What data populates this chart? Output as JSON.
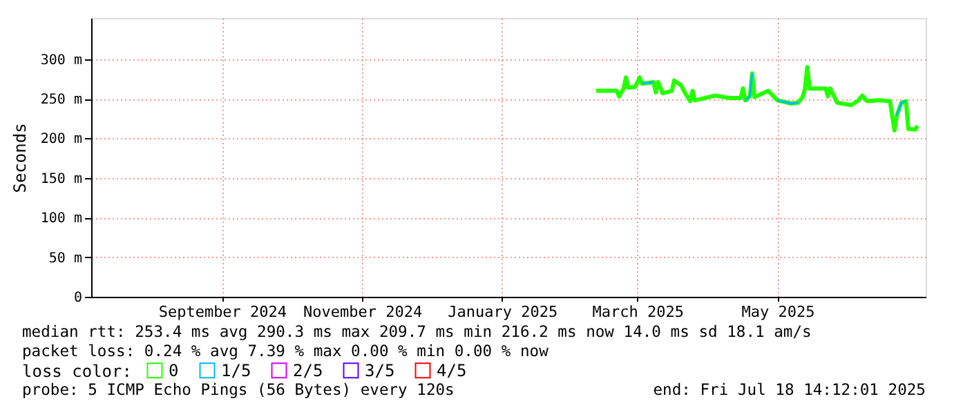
{
  "chart_data": {
    "type": "line",
    "ylabel": "Seconds",
    "x": [
      "2025-02-25",
      "2025-03-06",
      "2025-03-07",
      "2025-03-09",
      "2025-03-10",
      "2025-03-11",
      "2025-03-14",
      "2025-03-16",
      "2025-03-17",
      "2025-03-22",
      "2025-03-23",
      "2025-03-24",
      "2025-03-26",
      "2025-03-30",
      "2025-03-31",
      "2025-04-03",
      "2025-04-05",
      "2025-04-07",
      "2025-04-08",
      "2025-04-09",
      "2025-04-12",
      "2025-04-18",
      "2025-04-24",
      "2025-04-29",
      "2025-04-30",
      "2025-05-01",
      "2025-05-03",
      "2025-05-04",
      "2025-05-05",
      "2025-05-11",
      "2025-05-15",
      "2025-05-21",
      "2025-05-24",
      "2025-05-26",
      "2025-05-27",
      "2025-05-28",
      "2025-05-29",
      "2025-06-05",
      "2025-06-06",
      "2025-06-07",
      "2025-06-10",
      "2025-06-16",
      "2025-06-19",
      "2025-06-21",
      "2025-06-23",
      "2025-06-28",
      "2025-07-03",
      "2025-07-05",
      "2025-07-06",
      "2025-07-08",
      "2025-07-10",
      "2025-07-11",
      "2025-07-14",
      "2025-07-15"
    ],
    "series": [
      {
        "name": "0",
        "color": "#26ff00",
        "values": [
          260,
          260,
          253,
          263,
          277,
          264,
          265,
          277,
          269,
          271,
          258,
          271,
          257,
          260,
          273,
          267,
          256,
          247,
          260,
          248,
          250,
          254,
          251,
          251,
          263,
          248,
          253,
          282,
          252,
          260,
          248,
          244,
          245,
          252,
          263,
          290,
          263,
          263,
          253,
          263,
          245,
          242,
          247,
          254,
          247,
          248,
          247,
          210,
          229,
          245,
          247,
          212,
          211,
          216
        ]
      },
      {
        "name": "1/5",
        "color": "#00b8ff",
        "values": [
          null,
          null,
          null,
          null,
          null,
          null,
          null,
          null,
          269,
          271,
          null,
          null,
          null,
          null,
          null,
          null,
          null,
          null,
          null,
          null,
          null,
          null,
          null,
          null,
          null,
          248,
          253,
          282,
          null,
          null,
          248,
          244,
          245,
          null,
          null,
          null,
          null,
          null,
          null,
          null,
          null,
          null,
          null,
          null,
          null,
          null,
          null,
          null,
          229,
          245,
          247,
          null,
          null,
          null
        ]
      },
      {
        "name": "2/5",
        "color": "#d200ff",
        "values": [
          null,
          null,
          null,
          null,
          null,
          null,
          null,
          null,
          null,
          null,
          null,
          null,
          null,
          null,
          null,
          null,
          null,
          null,
          null,
          null,
          null,
          null,
          null,
          null,
          null,
          null,
          null,
          null,
          null,
          null,
          null,
          null,
          null,
          null,
          null,
          null,
          null,
          null,
          null,
          null,
          null,
          null,
          null,
          null,
          null,
          null,
          null,
          null,
          null,
          null,
          null,
          null,
          null,
          null
        ]
      },
      {
        "name": "3/5",
        "color": "#5e00ff",
        "values": [
          null,
          null,
          null,
          null,
          null,
          null,
          null,
          null,
          null,
          null,
          null,
          null,
          null,
          null,
          null,
          null,
          null,
          null,
          null,
          null,
          null,
          null,
          null,
          null,
          null,
          null,
          null,
          null,
          null,
          null,
          null,
          null,
          null,
          null,
          null,
          null,
          null,
          null,
          null,
          null,
          null,
          null,
          null,
          null,
          null,
          null,
          null,
          null,
          null,
          null,
          null,
          null,
          null,
          null
        ]
      },
      {
        "name": "4/5",
        "color": "#ff0000",
        "values": [
          null,
          null,
          null,
          null,
          null,
          null,
          null,
          null,
          null,
          null,
          null,
          null,
          null,
          null,
          null,
          null,
          null,
          null,
          null,
          null,
          null,
          null,
          null,
          null,
          null,
          null,
          null,
          null,
          null,
          null,
          null,
          null,
          null,
          null,
          null,
          null,
          null,
          null,
          null,
          null,
          null,
          null,
          null,
          null,
          null,
          null,
          null,
          null,
          null,
          null,
          null,
          null,
          null,
          null
        ]
      }
    ],
    "legend_title": "loss color:",
    "legend": "bottom",
    "xlim": [
      "2024-07-20",
      "2025-07-18T14:12"
    ],
    "xticks": [
      {
        "value": "2024-09-15",
        "label": "September 2024"
      },
      {
        "value": "2024-11-15",
        "label": "November 2024"
      },
      {
        "value": "2025-01-15",
        "label": "January 2025"
      },
      {
        "value": "2025-03-15",
        "label": "March 2025"
      },
      {
        "value": "2025-05-15",
        "label": "May 2025"
      }
    ],
    "ylim": [
      0,
      352
    ],
    "yticks": [
      0,
      {
        "value": 50,
        "label": "50 m"
      },
      {
        "value": 100,
        "label": "100 m"
      },
      {
        "value": 150,
        "label": "150 m"
      },
      {
        "value": 200,
        "label": "200 m"
      },
      {
        "value": 250,
        "label": "250 m"
      },
      {
        "value": 300,
        "label": "300 m"
      }
    ],
    "grid": true,
    "annotations": [
      "median rtt:  253.4 ms avg  290.3 ms max  209.7 ms min  216.2 ms now  14.0 ms sd  18.1   am/s",
      "packet loss: 0.24 % avg  7.39 % max  0.00 % min  0.00 % now",
      "probe:       5 ICMP Echo Pings (56 Bytes) every 120s",
      "end: Fri Jul 18 14:12:01 2025"
    ]
  }
}
